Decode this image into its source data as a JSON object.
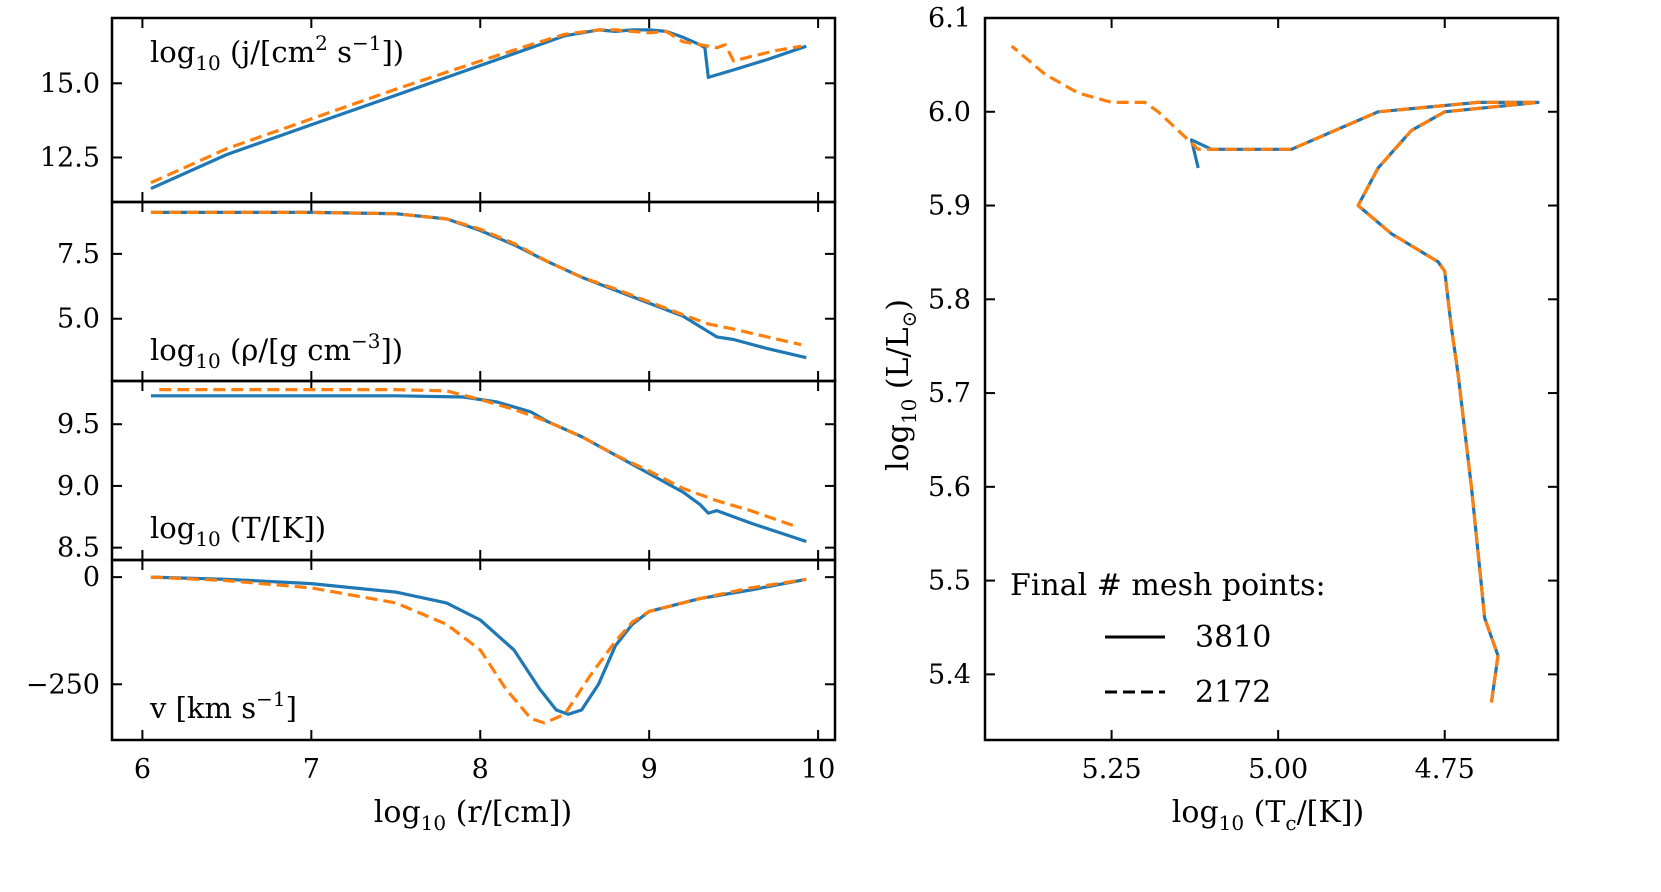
{
  "colors": {
    "series_a": "#1f77b4",
    "series_b": "#ff7f0e",
    "axis": "#000000"
  },
  "legend": {
    "title": "Final # mesh points:",
    "entries": [
      "3810",
      "2172"
    ]
  },
  "chart_data": [
    {
      "type": "line",
      "panel": "j",
      "label": "log10 (j/[cm^2 s^-1])",
      "xlim": [
        5.82,
        10.1
      ],
      "ylim": [
        11.0,
        17.2
      ],
      "yticks": [
        12.5,
        15.0
      ],
      "ytick_labels": [
        "12.5",
        "15.0"
      ],
      "series": [
        {
          "name": "3810",
          "style": "solid",
          "points": [
            [
              6.05,
              11.45
            ],
            [
              6.5,
              12.6
            ],
            [
              7.0,
              13.6
            ],
            [
              7.5,
              14.6
            ],
            [
              8.0,
              15.6
            ],
            [
              8.3,
              16.2
            ],
            [
              8.5,
              16.6
            ],
            [
              8.7,
              16.8
            ],
            [
              8.8,
              16.75
            ],
            [
              8.9,
              16.8
            ],
            [
              9.0,
              16.8
            ],
            [
              9.1,
              16.75
            ],
            [
              9.2,
              16.55
            ],
            [
              9.3,
              16.3
            ],
            [
              9.33,
              16.2
            ],
            [
              9.35,
              15.2
            ],
            [
              9.5,
              15.45
            ],
            [
              9.7,
              15.8
            ],
            [
              9.93,
              16.25
            ]
          ]
        },
        {
          "name": "2172",
          "style": "dashed",
          "points": [
            [
              6.05,
              11.65
            ],
            [
              6.5,
              12.8
            ],
            [
              7.0,
              13.8
            ],
            [
              7.5,
              14.8
            ],
            [
              8.0,
              15.75
            ],
            [
              8.3,
              16.3
            ],
            [
              8.5,
              16.65
            ],
            [
              8.7,
              16.8
            ],
            [
              8.8,
              16.8
            ],
            [
              8.9,
              16.75
            ],
            [
              9.0,
              16.7
            ],
            [
              9.1,
              16.75
            ],
            [
              9.2,
              16.4
            ],
            [
              9.3,
              16.3
            ],
            [
              9.4,
              16.2
            ],
            [
              9.45,
              16.3
            ],
            [
              9.5,
              15.75
            ],
            [
              9.6,
              15.9
            ],
            [
              9.75,
              16.1
            ],
            [
              9.9,
              16.25
            ]
          ]
        }
      ]
    },
    {
      "type": "line",
      "panel": "rho",
      "label": "log10 (ρ/[g cm^-3])",
      "xlim": [
        5.82,
        10.1
      ],
      "ylim": [
        2.6,
        9.5
      ],
      "yticks": [
        5.0,
        7.5
      ],
      "ytick_labels": [
        "5.0",
        "7.5"
      ],
      "series": [
        {
          "name": "3810",
          "style": "solid",
          "points": [
            [
              6.05,
              9.1
            ],
            [
              7.0,
              9.1
            ],
            [
              7.5,
              9.05
            ],
            [
              7.8,
              8.85
            ],
            [
              8.0,
              8.4
            ],
            [
              8.2,
              7.85
            ],
            [
              8.4,
              7.2
            ],
            [
              8.6,
              6.6
            ],
            [
              8.8,
              6.1
            ],
            [
              9.0,
              5.6
            ],
            [
              9.2,
              5.1
            ],
            [
              9.35,
              4.5
            ],
            [
              9.4,
              4.3
            ],
            [
              9.5,
              4.2
            ],
            [
              9.7,
              3.85
            ],
            [
              9.93,
              3.5
            ]
          ]
        },
        {
          "name": "2172",
          "style": "dashed",
          "points": [
            [
              6.05,
              9.1
            ],
            [
              7.0,
              9.1
            ],
            [
              7.5,
              9.05
            ],
            [
              7.8,
              8.85
            ],
            [
              8.0,
              8.45
            ],
            [
              8.2,
              7.9
            ],
            [
              8.4,
              7.2
            ],
            [
              8.6,
              6.6
            ],
            [
              8.8,
              6.15
            ],
            [
              9.0,
              5.65
            ],
            [
              9.2,
              5.15
            ],
            [
              9.35,
              4.8
            ],
            [
              9.5,
              4.6
            ],
            [
              9.7,
              4.3
            ],
            [
              9.9,
              4.0
            ]
          ]
        }
      ]
    },
    {
      "type": "line",
      "panel": "T",
      "label": "log10 (T/[K])",
      "xlim": [
        5.82,
        10.1
      ],
      "ylim": [
        8.4,
        9.85
      ],
      "yticks": [
        8.5,
        9.0,
        9.5
      ],
      "ytick_labels": [
        "8.5",
        "9.0",
        "9.5"
      ],
      "series": [
        {
          "name": "3810",
          "style": "solid",
          "points": [
            [
              6.05,
              9.73
            ],
            [
              7.5,
              9.73
            ],
            [
              7.9,
              9.72
            ],
            [
              8.1,
              9.68
            ],
            [
              8.3,
              9.6
            ],
            [
              8.4,
              9.52
            ],
            [
              8.6,
              9.4
            ],
            [
              8.8,
              9.25
            ],
            [
              9.0,
              9.1
            ],
            [
              9.2,
              8.95
            ],
            [
              9.3,
              8.85
            ],
            [
              9.35,
              8.78
            ],
            [
              9.4,
              8.8
            ],
            [
              9.6,
              8.7
            ],
            [
              9.93,
              8.55
            ]
          ]
        },
        {
          "name": "2172",
          "style": "dashed",
          "points": [
            [
              6.1,
              9.78
            ],
            [
              7.5,
              9.78
            ],
            [
              7.8,
              9.77
            ],
            [
              8.0,
              9.7
            ],
            [
              8.2,
              9.62
            ],
            [
              8.4,
              9.52
            ],
            [
              8.6,
              9.4
            ],
            [
              8.8,
              9.25
            ],
            [
              9.0,
              9.12
            ],
            [
              9.2,
              8.98
            ],
            [
              9.4,
              8.88
            ],
            [
              9.6,
              8.8
            ],
            [
              9.85,
              8.68
            ]
          ]
        }
      ]
    },
    {
      "type": "line",
      "panel": "v",
      "label": "v [km s^-1]",
      "xlim": [
        5.82,
        10.1
      ],
      "xlabel": "log10 (r/[cm])",
      "xticks": [
        6,
        7,
        8,
        9,
        10
      ],
      "xtick_labels": [
        "6",
        "7",
        "8",
        "9",
        "10"
      ],
      "ylim": [
        -380,
        40
      ],
      "yticks": [
        -250,
        0
      ],
      "ytick_labels": [
        "−250",
        "0"
      ],
      "series": [
        {
          "name": "3810",
          "style": "solid",
          "points": [
            [
              6.05,
              0
            ],
            [
              6.5,
              -5
            ],
            [
              7.0,
              -15
            ],
            [
              7.5,
              -35
            ],
            [
              7.8,
              -60
            ],
            [
              8.0,
              -100
            ],
            [
              8.2,
              -170
            ],
            [
              8.35,
              -260
            ],
            [
              8.45,
              -310
            ],
            [
              8.52,
              -320
            ],
            [
              8.6,
              -310
            ],
            [
              8.7,
              -250
            ],
            [
              8.8,
              -160
            ],
            [
              8.9,
              -110
            ],
            [
              9.0,
              -80
            ],
            [
              9.3,
              -50
            ],
            [
              9.6,
              -30
            ],
            [
              9.93,
              -5
            ]
          ]
        },
        {
          "name": "2172",
          "style": "dashed",
          "points": [
            [
              6.05,
              0
            ],
            [
              6.5,
              -8
            ],
            [
              7.0,
              -25
            ],
            [
              7.5,
              -60
            ],
            [
              7.8,
              -110
            ],
            [
              8.0,
              -170
            ],
            [
              8.15,
              -260
            ],
            [
              8.3,
              -330
            ],
            [
              8.38,
              -340
            ],
            [
              8.5,
              -320
            ],
            [
              8.65,
              -230
            ],
            [
              8.8,
              -150
            ],
            [
              8.9,
              -105
            ],
            [
              9.0,
              -80
            ],
            [
              9.3,
              -50
            ],
            [
              9.6,
              -25
            ],
            [
              9.93,
              -5
            ]
          ]
        }
      ]
    },
    {
      "type": "line",
      "panel": "hr",
      "xlabel": "log10 (T_c/[K])",
      "ylabel": "log10 (L/L_⊙)",
      "xlim": [
        5.44,
        4.58
      ],
      "ylim": [
        5.33,
        6.1
      ],
      "xticks": [
        5.25,
        5.0,
        4.75
      ],
      "xtick_labels": [
        "5.25",
        "5.00",
        "4.75"
      ],
      "yticks": [
        5.4,
        5.5,
        5.6,
        5.7,
        5.8,
        5.9,
        6.0,
        6.1
      ],
      "ytick_labels": [
        "5.4",
        "5.5",
        "5.6",
        "5.7",
        "5.8",
        "5.9",
        "6.0",
        "6.1"
      ],
      "series": [
        {
          "name": "3810",
          "style": "solid",
          "points": [
            [
              4.68,
              5.37
            ],
            [
              4.67,
              5.42
            ],
            [
              4.69,
              5.46
            ],
            [
              4.71,
              5.6
            ],
            [
              4.73,
              5.72
            ],
            [
              4.74,
              5.77
            ],
            [
              4.75,
              5.83
            ],
            [
              4.76,
              5.84
            ],
            [
              4.83,
              5.87
            ],
            [
              4.88,
              5.9
            ],
            [
              4.85,
              5.94
            ],
            [
              4.8,
              5.98
            ],
            [
              4.75,
              6.0
            ],
            [
              4.61,
              6.01
            ],
            [
              4.7,
              6.01
            ],
            [
              4.85,
              6.0
            ],
            [
              4.98,
              5.96
            ],
            [
              5.05,
              5.96
            ],
            [
              5.1,
              5.96
            ],
            [
              5.13,
              5.97
            ],
            [
              5.12,
              5.94
            ]
          ]
        },
        {
          "name": "2172",
          "style": "dashed",
          "points": [
            [
              4.68,
              5.37
            ],
            [
              4.67,
              5.42
            ],
            [
              4.69,
              5.46
            ],
            [
              4.71,
              5.6
            ],
            [
              4.73,
              5.72
            ],
            [
              4.74,
              5.77
            ],
            [
              4.75,
              5.83
            ],
            [
              4.76,
              5.84
            ],
            [
              4.83,
              5.87
            ],
            [
              4.88,
              5.9
            ],
            [
              4.85,
              5.94
            ],
            [
              4.8,
              5.98
            ],
            [
              4.75,
              6.0
            ],
            [
              4.61,
              6.01
            ],
            [
              4.7,
              6.01
            ],
            [
              4.85,
              6.0
            ],
            [
              4.98,
              5.96
            ],
            [
              5.05,
              5.96
            ],
            [
              5.12,
              5.96
            ],
            [
              5.15,
              5.98
            ],
            [
              5.18,
              6.0
            ],
            [
              5.2,
              6.01
            ],
            [
              5.25,
              6.01
            ],
            [
              5.3,
              6.02
            ],
            [
              5.35,
              6.04
            ],
            [
              5.4,
              6.07
            ]
          ]
        }
      ]
    }
  ]
}
